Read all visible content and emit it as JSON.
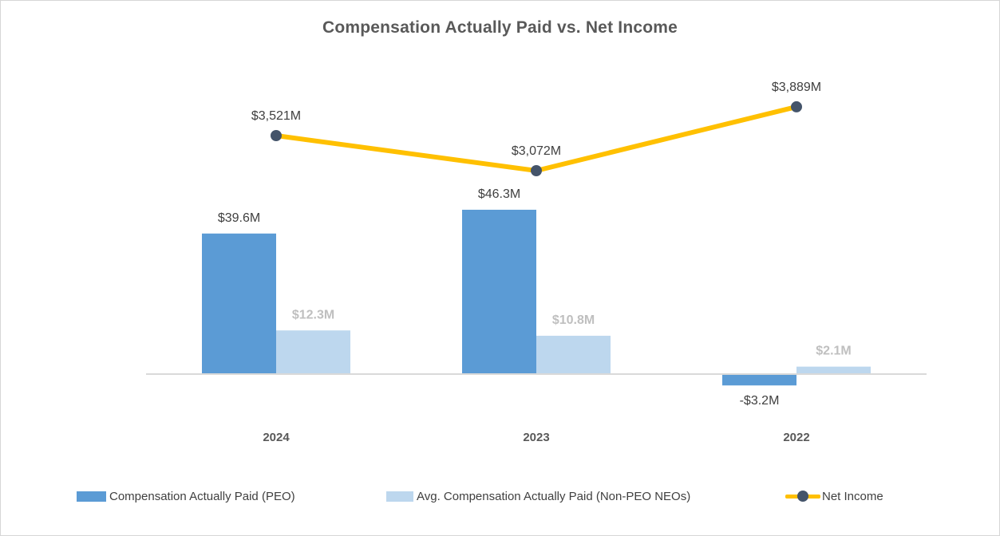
{
  "chart_data": {
    "type": "combo-bar-line",
    "title": "Compensation Actually Paid vs. Net Income",
    "categories": [
      "2024",
      "2023",
      "2022"
    ],
    "series": [
      {
        "name": "Compensation Actually Paid (PEO)",
        "type": "bar",
        "color": "#5B9BD5",
        "values": [
          39.6,
          46.3,
          -3.2
        ],
        "labels": [
          "$39.6M",
          "$46.3M",
          "-$3.2M"
        ],
        "label_color": "#404040",
        "label_bold": false
      },
      {
        "name": "Avg. Compensation Actually Paid (Non-PEO NEOs)",
        "type": "bar",
        "color": "#BDD7EE",
        "values": [
          12.3,
          10.8,
          2.1
        ],
        "labels": [
          "$12.3M",
          "$10.8M",
          "$2.1M"
        ],
        "label_color": "#BFBFBF",
        "label_bold": true
      },
      {
        "name": "Net Income",
        "type": "line",
        "color": "#FFC000",
        "marker_color": "#44546A",
        "values": [
          3521,
          3072,
          3889
        ],
        "labels": [
          "$3,521M",
          "$3,072M",
          "$3,889M"
        ],
        "label_color": "#404040",
        "label_bold": false
      }
    ],
    "units": "USD millions",
    "legend_position": "bottom",
    "gridlines": false,
    "y_axis_visible": false
  },
  "colors": {
    "axis_line": "#D9D9D9",
    "category_label": "#595959",
    "title_text": "#595959"
  }
}
